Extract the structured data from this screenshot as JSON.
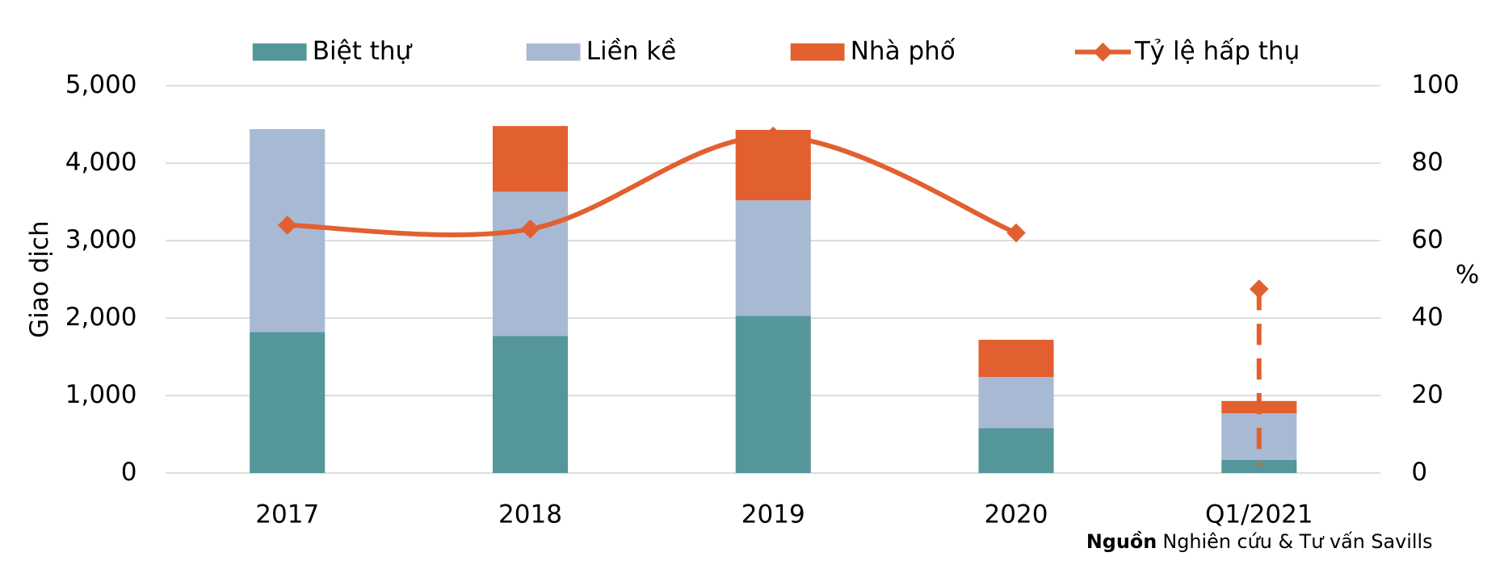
{
  "chart_data": {
    "type": "bar",
    "categories": [
      "2017",
      "2018",
      "2019",
      "2020",
      "Q1/2021"
    ],
    "y_label": "Giao dịch",
    "y2_label": "%",
    "ylim": [
      0,
      5000
    ],
    "yticks": [
      0,
      {
        "value": 1000,
        "label": "1,000"
      },
      {
        "value": 2000,
        "label": "2,000"
      },
      {
        "value": 3000,
        "label": "3,000"
      },
      {
        "value": 4000,
        "label": "4,000"
      },
      {
        "value": 5000,
        "label": "5,000"
      }
    ],
    "y2lim": [
      0,
      100
    ],
    "y2ticks": [
      0,
      20,
      40,
      60,
      80,
      100
    ],
    "grid": true,
    "stacked": true,
    "series": [
      {
        "name": "Biệt thự",
        "color": "#55969a",
        "values": [
          1820,
          1770,
          2030,
          580,
          170
        ]
      },
      {
        "name": "Liền kề",
        "color": "#a8b9d4",
        "values": [
          2620,
          1860,
          1490,
          660,
          600
        ]
      },
      {
        "name": "Nhà phố",
        "color": "#e2602f",
        "values": [
          0,
          850,
          910,
          480,
          160
        ]
      },
      {
        "name": "Tỷ lệ hấp thụ",
        "type": "line",
        "axis": "y2",
        "color": "#e2602f",
        "values": [
          64,
          63,
          87,
          62,
          47.5
        ],
        "last_point_dashed_stem": true
      }
    ],
    "source": {
      "label": "Nguồn",
      "text": "Nghiên cứu & Tư vấn Savills"
    }
  }
}
